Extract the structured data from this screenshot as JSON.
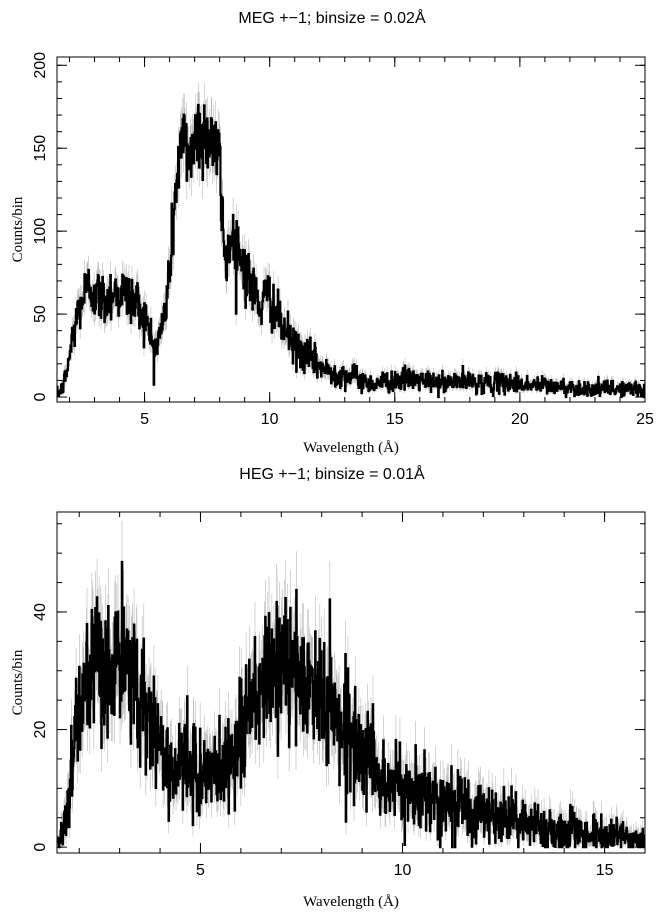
{
  "chart_data": [
    {
      "type": "line",
      "title": "MEG +−1; binsize = 0.02Å",
      "xlabel": "Wavelength (Å)",
      "ylabel": "Counts/bin",
      "xlim": [
        1.5,
        25
      ],
      "ylim": [
        -3,
        205
      ],
      "xticks": [
        5,
        10,
        15,
        20,
        25
      ],
      "yticks": [
        0,
        50,
        100,
        150,
        200
      ],
      "grid": false,
      "colors": {
        "data": "#000000",
        "errorbars": "#b8b8b8"
      },
      "series": [
        {
          "x": [
            1.55,
            1.7,
            1.85,
            2.0,
            2.2,
            2.4,
            2.6,
            2.8,
            3.0,
            3.2,
            3.4,
            3.6,
            3.8,
            4.0,
            4.2,
            4.4,
            4.6,
            4.8,
            5.0,
            5.2,
            5.4,
            5.6,
            5.8,
            6.0,
            6.2,
            6.4,
            6.6,
            6.8,
            7.0,
            7.2,
            7.4,
            7.6,
            7.8,
            8.0,
            8.2,
            8.4,
            8.6,
            8.8,
            9.0,
            9.2,
            9.4,
            9.6,
            9.8,
            10.0,
            10.2,
            10.4,
            10.6,
            10.8,
            11.0,
            11.3,
            11.6,
            11.9,
            12.2,
            12.5,
            12.8,
            13.1,
            13.4,
            13.7,
            14.0,
            14.5,
            15.0,
            15.5,
            16.0,
            16.5,
            17.0,
            17.5,
            18.0,
            18.5,
            19.0,
            19.5,
            20.0,
            20.5,
            21.0,
            21.5,
            22.0,
            22.5,
            23.0,
            23.5,
            24.0,
            24.5,
            25.0
          ],
          "values": [
            2,
            5,
            12,
            25,
            42,
            55,
            62,
            66,
            64,
            60,
            58,
            62,
            64,
            63,
            62,
            60,
            58,
            55,
            48,
            38,
            30,
            36,
            50,
            75,
            115,
            150,
            152,
            148,
            155,
            162,
            158,
            160,
            150,
            140,
            82,
            93,
            95,
            87,
            78,
            70,
            62,
            55,
            58,
            62,
            52,
            45,
            40,
            35,
            30,
            27,
            24,
            20,
            16,
            15,
            14,
            13,
            12,
            10,
            8,
            9,
            10,
            11,
            10,
            9,
            8,
            10,
            9,
            9,
            8,
            9,
            8,
            7,
            7,
            6,
            6,
            5,
            5,
            5,
            5,
            5,
            4
          ]
        }
      ]
    },
    {
      "type": "line",
      "title": "HEG +−1; binsize = 0.01Å",
      "xlabel": "Wavelength (Å)",
      "ylabel": "Counts/bin",
      "xlim": [
        1.45,
        16
      ],
      "ylim": [
        -1,
        57
      ],
      "xticks": [
        5,
        10,
        15
      ],
      "yticks": [
        0,
        20,
        40
      ],
      "grid": false,
      "colors": {
        "data": "#000000",
        "errorbars": "#b8b8b8"
      },
      "series": [
        {
          "x": [
            1.5,
            1.6,
            1.7,
            1.8,
            1.9,
            2.0,
            2.2,
            2.4,
            2.6,
            2.8,
            3.0,
            3.2,
            3.4,
            3.6,
            3.8,
            4.0,
            4.2,
            4.4,
            4.6,
            4.8,
            5.0,
            5.2,
            5.4,
            5.6,
            5.8,
            6.0,
            6.2,
            6.4,
            6.6,
            6.8,
            7.0,
            7.2,
            7.4,
            7.6,
            7.8,
            8.0,
            8.2,
            8.4,
            8.6,
            8.8,
            9.0,
            9.2,
            9.4,
            9.6,
            9.8,
            10.0,
            10.3,
            10.6,
            10.9,
            11.2,
            11.5,
            11.8,
            12.1,
            12.4,
            12.7,
            13.0,
            13.3,
            13.6,
            13.9,
            14.2,
            14.5,
            14.8,
            15.1,
            15.4,
            15.7,
            16.0
          ],
          "values": [
            1,
            3,
            7,
            13,
            19,
            24,
            27,
            29,
            30,
            31,
            31,
            30,
            28,
            25,
            21,
            18,
            14,
            13,
            14,
            13,
            13,
            12,
            13,
            14,
            16,
            20,
            23,
            26,
            28,
            30,
            31,
            30,
            29,
            27,
            27,
            26,
            24,
            22,
            20,
            18,
            17,
            15,
            12,
            11,
            10,
            10,
            9,
            9,
            8,
            8,
            7,
            6,
            6,
            5,
            5,
            4,
            4,
            3,
            3,
            3,
            2,
            2,
            2,
            2,
            1,
            1
          ]
        }
      ]
    }
  ]
}
